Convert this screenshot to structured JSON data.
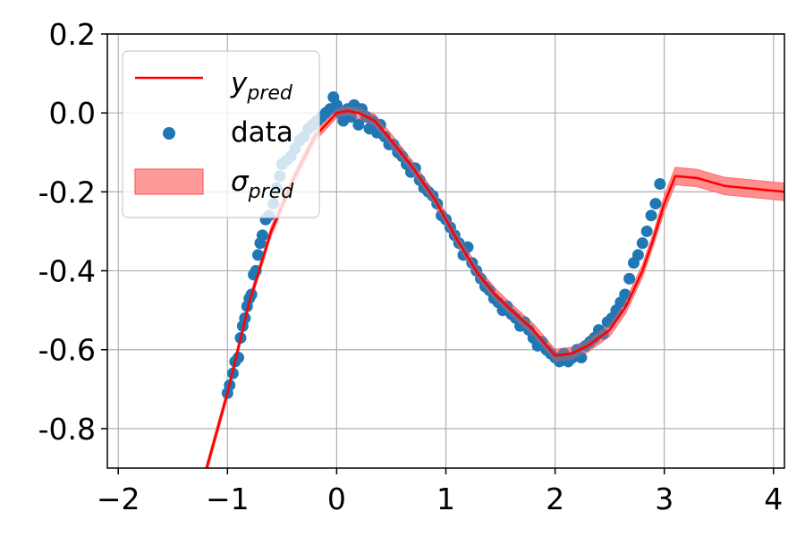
{
  "chart_data": {
    "type": "scatter",
    "title": "",
    "xlabel": "",
    "ylabel": "",
    "xlim": [
      -2.1,
      4.1
    ],
    "ylim": [
      -0.9,
      0.2
    ],
    "grid": true,
    "x_ticks": [
      -2,
      -1,
      0,
      1,
      2,
      3,
      4
    ],
    "x_tick_labels": [
      "−2",
      "−1",
      "0",
      "1",
      "2",
      "3",
      "4"
    ],
    "y_ticks": [
      0.2,
      0.0,
      -0.2,
      -0.4,
      -0.6,
      -0.8
    ],
    "y_tick_labels": [
      "0.2",
      "0.0",
      "-0.2",
      "-0.4",
      "-0.6",
      "-0.8"
    ],
    "legend_position": "top-left",
    "legend": [
      {
        "kind": "line",
        "base": "y",
        "sub": "pred",
        "color": "#ff0000"
      },
      {
        "kind": "marker",
        "text": "data",
        "color": "#1f77b4"
      },
      {
        "kind": "band",
        "base": "σ",
        "sub": "pred",
        "color": "#ff0000"
      }
    ],
    "colors": {
      "data": "#1f77b4",
      "prediction": "#ff0000",
      "band_fill": "#ff9a9a",
      "grid": "#b0b0b0"
    },
    "prediction_line": {
      "name": "y_pred",
      "x": [
        -1.2,
        -1.0,
        -0.8,
        -0.6,
        -0.4,
        -0.2,
        0.0,
        0.1,
        0.2,
        0.35,
        0.5,
        0.7,
        0.9,
        1.1,
        1.3,
        1.45,
        1.6,
        1.8,
        2.0,
        2.15,
        2.3,
        2.5,
        2.65,
        2.8,
        2.9,
        3.0,
        3.1,
        3.3,
        3.55,
        4.1
      ],
      "y": [
        -0.91,
        -0.71,
        -0.48,
        -0.3,
        -0.17,
        -0.06,
        0.0,
        0.005,
        0.0,
        -0.02,
        -0.07,
        -0.14,
        -0.22,
        -0.32,
        -0.41,
        -0.46,
        -0.5,
        -0.55,
        -0.615,
        -0.61,
        -0.59,
        -0.55,
        -0.49,
        -0.4,
        -0.32,
        -0.23,
        -0.16,
        -0.165,
        -0.185,
        -0.2
      ]
    },
    "sigma_band": {
      "name": "σ_pred",
      "half_width": [
        0.012,
        0.012,
        0.012,
        0.012,
        0.012,
        0.012,
        0.012,
        0.012,
        0.014,
        0.016,
        0.016,
        0.016,
        0.016,
        0.016,
        0.016,
        0.016,
        0.016,
        0.016,
        0.016,
        0.016,
        0.016,
        0.016,
        0.016,
        0.016,
        0.016,
        0.02,
        0.022,
        0.022,
        0.022,
        0.022
      ]
    },
    "data_points": [
      [
        -1.0,
        -0.71
      ],
      [
        -0.98,
        -0.69
      ],
      [
        -0.95,
        -0.66
      ],
      [
        -0.93,
        -0.63
      ],
      [
        -0.9,
        -0.62
      ],
      [
        -0.88,
        -0.57
      ],
      [
        -0.86,
        -0.54
      ],
      [
        -0.84,
        -0.52
      ],
      [
        -0.82,
        -0.49
      ],
      [
        -0.8,
        -0.47
      ],
      [
        -0.78,
        -0.46
      ],
      [
        -0.76,
        -0.41
      ],
      [
        -0.74,
        -0.4
      ],
      [
        -0.72,
        -0.36
      ],
      [
        -0.7,
        -0.33
      ],
      [
        -0.68,
        -0.31
      ],
      [
        -0.65,
        -0.27
      ],
      [
        -0.62,
        -0.26
      ],
      [
        -0.58,
        -0.23
      ],
      [
        -0.55,
        -0.19
      ],
      [
        -0.52,
        -0.16
      ],
      [
        -0.5,
        -0.13
      ],
      [
        -0.46,
        -0.12
      ],
      [
        -0.42,
        -0.11
      ],
      [
        -0.38,
        -0.09
      ],
      [
        -0.34,
        -0.07
      ],
      [
        -0.3,
        -0.06
      ],
      [
        -0.26,
        -0.04
      ],
      [
        -0.22,
        -0.03
      ],
      [
        -0.18,
        -0.02
      ],
      [
        -0.14,
        -0.01
      ],
      [
        -0.1,
        0.0
      ],
      [
        -0.06,
        0.01
      ],
      [
        -0.03,
        0.04
      ],
      [
        0.0,
        0.02
      ],
      [
        0.03,
        0.0
      ],
      [
        0.06,
        -0.02
      ],
      [
        0.1,
        0.01
      ],
      [
        0.13,
        -0.01
      ],
      [
        0.16,
        0.02
      ],
      [
        0.2,
        -0.03
      ],
      [
        0.23,
        0.01
      ],
      [
        0.27,
        -0.01
      ],
      [
        0.3,
        -0.04
      ],
      [
        0.33,
        -0.02
      ],
      [
        0.37,
        -0.05
      ],
      [
        0.4,
        -0.03
      ],
      [
        0.44,
        -0.06
      ],
      [
        0.48,
        -0.08
      ],
      [
        0.52,
        -0.08
      ],
      [
        0.56,
        -0.1
      ],
      [
        0.6,
        -0.11
      ],
      [
        0.64,
        -0.13
      ],
      [
        0.68,
        -0.15
      ],
      [
        0.72,
        -0.14
      ],
      [
        0.76,
        -0.17
      ],
      [
        0.8,
        -0.19
      ],
      [
        0.84,
        -0.2
      ],
      [
        0.88,
        -0.21
      ],
      [
        0.92,
        -0.23
      ],
      [
        0.96,
        -0.26
      ],
      [
        1.0,
        -0.27
      ],
      [
        1.04,
        -0.29
      ],
      [
        1.08,
        -0.31
      ],
      [
        1.12,
        -0.33
      ],
      [
        1.16,
        -0.36
      ],
      [
        1.2,
        -0.34
      ],
      [
        1.24,
        -0.38
      ],
      [
        1.28,
        -0.4
      ],
      [
        1.32,
        -0.42
      ],
      [
        1.36,
        -0.44
      ],
      [
        1.4,
        -0.45
      ],
      [
        1.44,
        -0.47
      ],
      [
        1.48,
        -0.48
      ],
      [
        1.52,
        -0.5
      ],
      [
        1.56,
        -0.49
      ],
      [
        1.6,
        -0.51
      ],
      [
        1.64,
        -0.52
      ],
      [
        1.68,
        -0.54
      ],
      [
        1.72,
        -0.53
      ],
      [
        1.76,
        -0.55
      ],
      [
        1.8,
        -0.57
      ],
      [
        1.84,
        -0.59
      ],
      [
        1.88,
        -0.58
      ],
      [
        1.92,
        -0.6
      ],
      [
        1.96,
        -0.61
      ],
      [
        2.0,
        -0.62
      ],
      [
        2.04,
        -0.63
      ],
      [
        2.08,
        -0.61
      ],
      [
        2.12,
        -0.63
      ],
      [
        2.16,
        -0.62
      ],
      [
        2.2,
        -0.6
      ],
      [
        2.24,
        -0.62
      ],
      [
        2.28,
        -0.59
      ],
      [
        2.32,
        -0.58
      ],
      [
        2.36,
        -0.57
      ],
      [
        2.4,
        -0.55
      ],
      [
        2.44,
        -0.56
      ],
      [
        2.48,
        -0.53
      ],
      [
        2.52,
        -0.52
      ],
      [
        2.56,
        -0.5
      ],
      [
        2.6,
        -0.48
      ],
      [
        2.64,
        -0.46
      ],
      [
        2.68,
        -0.42
      ],
      [
        2.72,
        -0.38
      ],
      [
        2.76,
        -0.36
      ],
      [
        2.8,
        -0.33
      ],
      [
        2.84,
        -0.3
      ],
      [
        2.88,
        -0.26
      ],
      [
        2.92,
        -0.23
      ],
      [
        2.96,
        -0.18
      ]
    ]
  }
}
